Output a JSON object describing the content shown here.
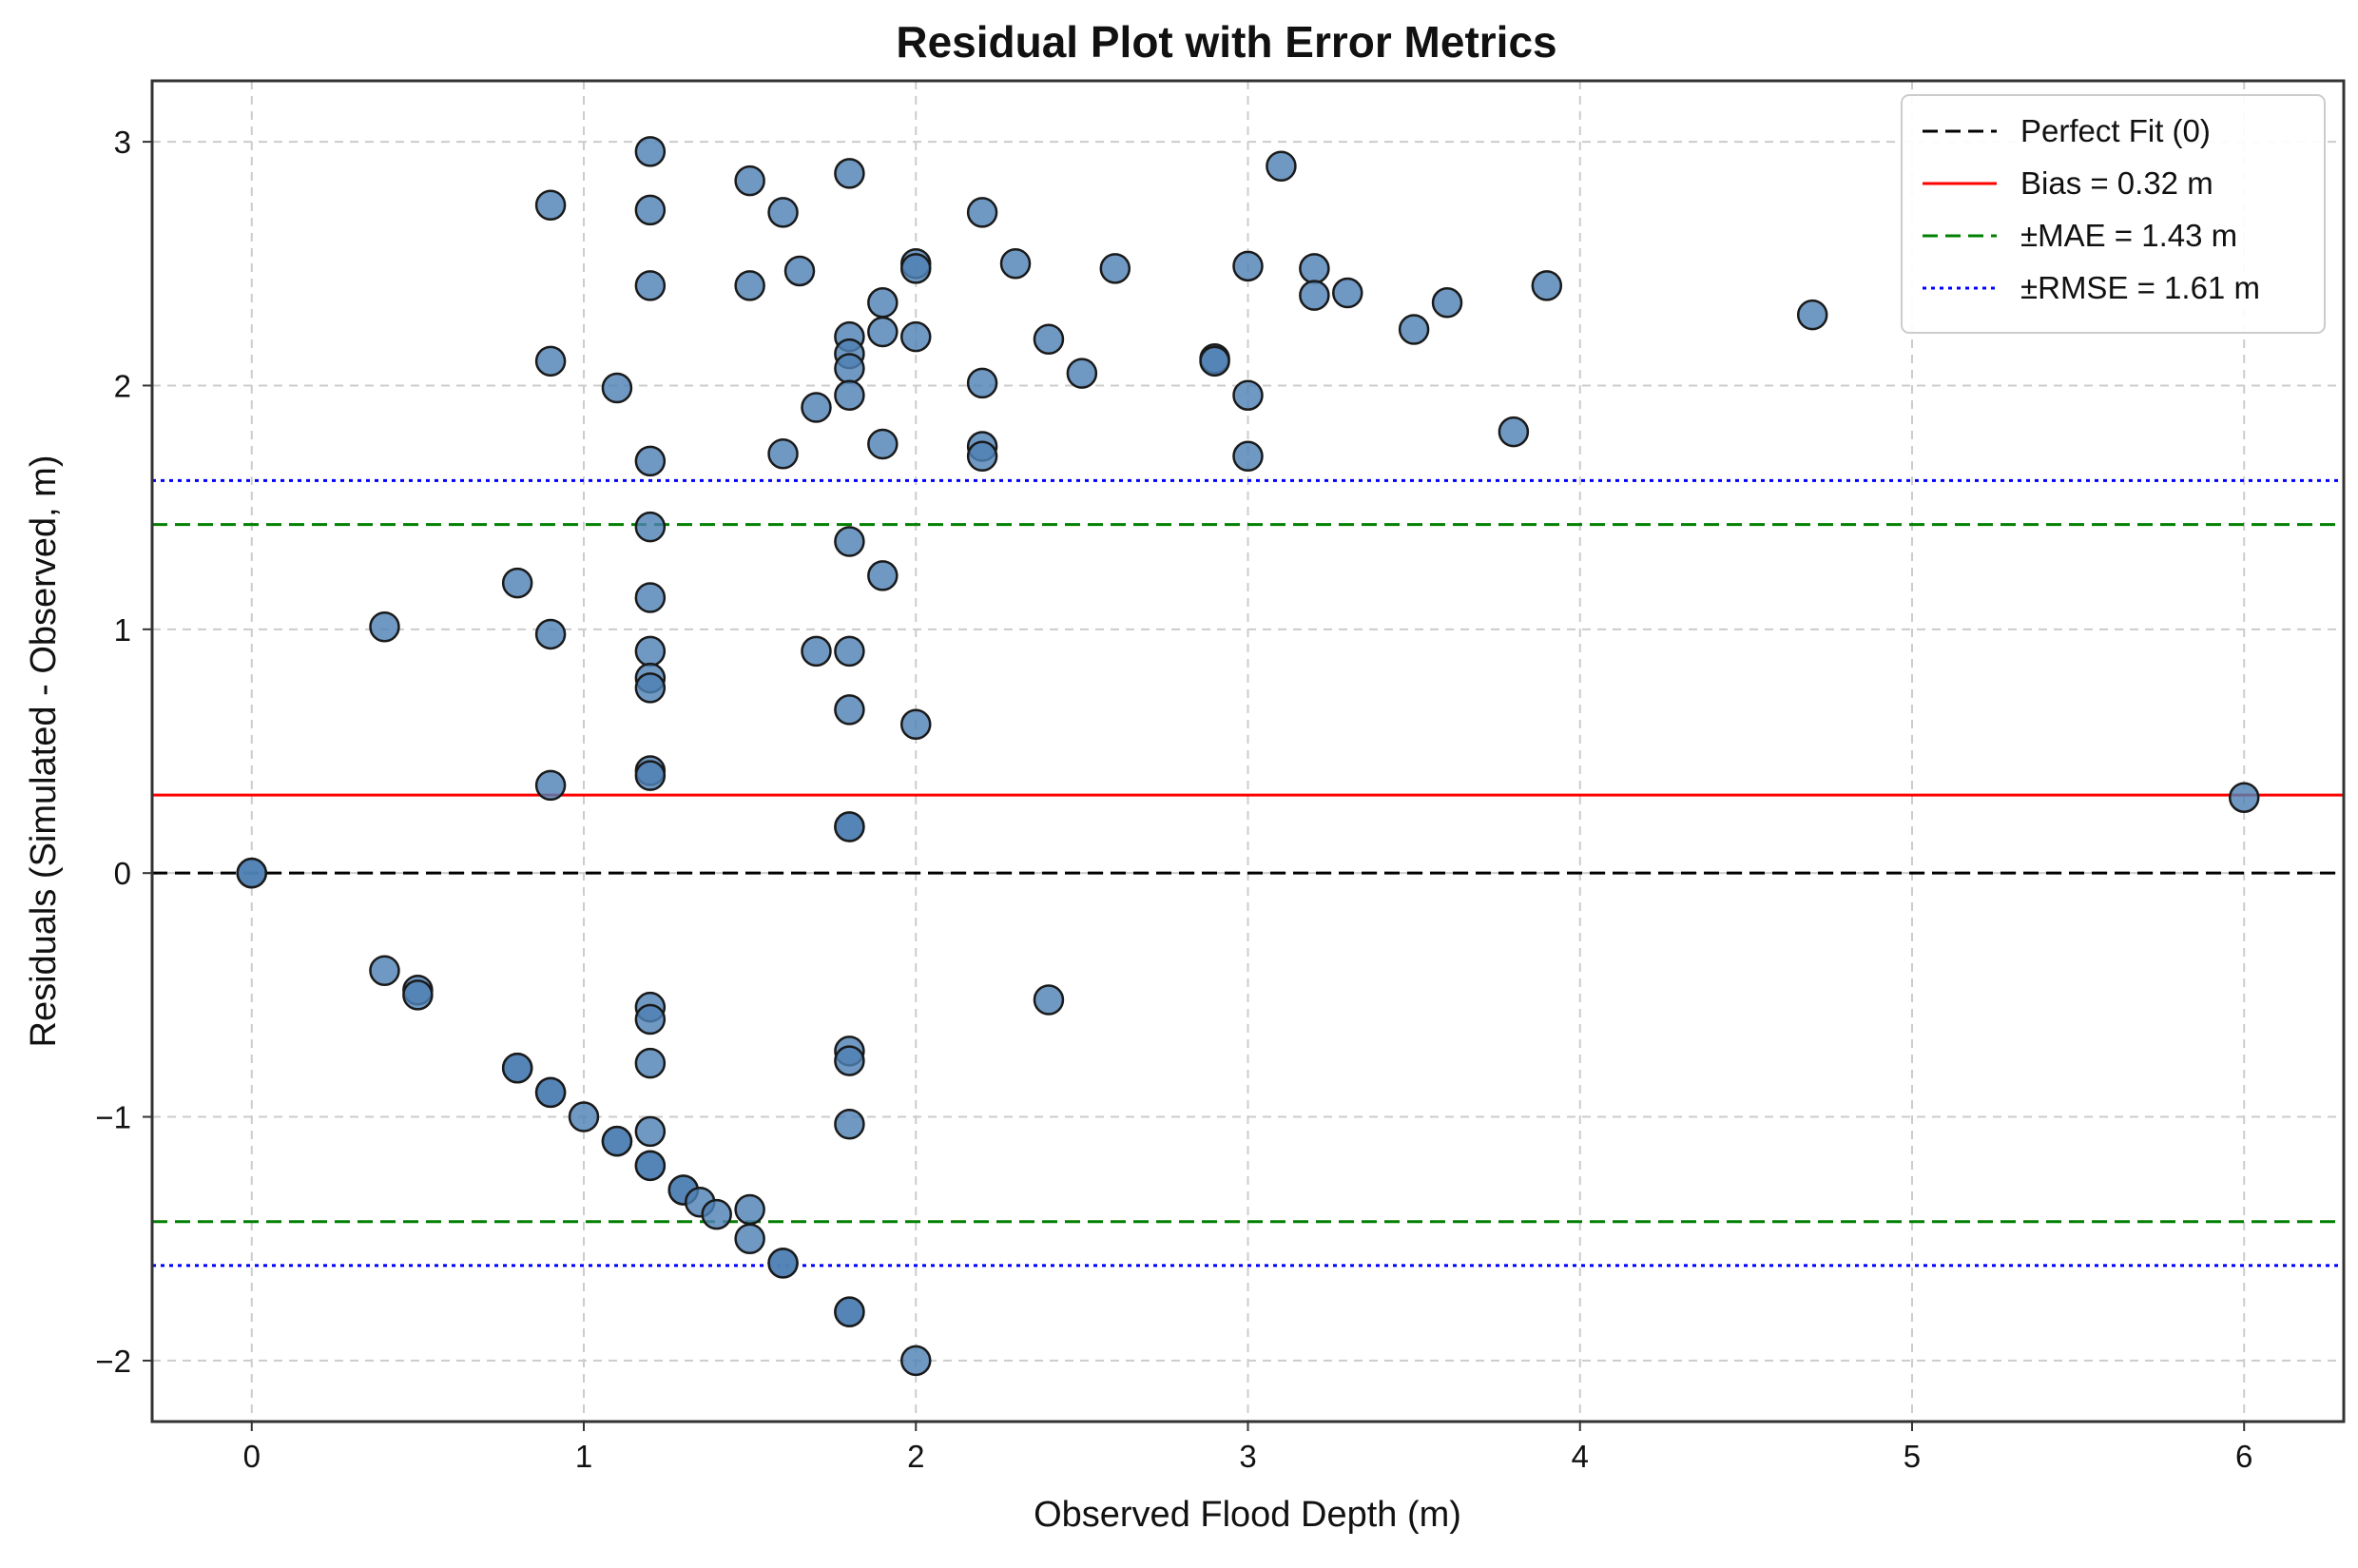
{
  "chart_data": {
    "type": "scatter",
    "title": "Residual Plot with Error Metrics",
    "xlabel": "Observed Flood Depth (m)",
    "ylabel": "Residuals (Simulated - Observed, m)",
    "xlim": [
      -0.3,
      6.3
    ],
    "ylim": [
      -2.25,
      3.25
    ],
    "xticks": [
      0,
      1,
      2,
      3,
      4,
      5,
      6
    ],
    "yticks": [
      -2,
      -1,
      0,
      1,
      2,
      3
    ],
    "xtick_labels": [
      "0",
      "1",
      "2",
      "3",
      "4",
      "5",
      "6"
    ],
    "ytick_labels": [
      "−2",
      "−1",
      "0",
      "1",
      "2",
      "3"
    ],
    "grid": true,
    "legend_position": "top-right",
    "marker_color": "#4f81b4",
    "reference_lines": [
      {
        "label": "Perfect Fit (0)",
        "y": [
          0
        ],
        "color": "#000000",
        "style": "dashed"
      },
      {
        "label": "Bias = 0.32 m",
        "y": [
          0.32
        ],
        "color": "#ff0000",
        "style": "solid"
      },
      {
        "label": "±MAE = 1.43 m",
        "y": [
          1.43,
          -1.43
        ],
        "color": "#008000",
        "style": "dashed"
      },
      {
        "label": "±RMSE = 1.61 m",
        "y": [
          1.61,
          -1.61
        ],
        "color": "#0000ff",
        "style": "dotted"
      }
    ],
    "points": [
      [
        0,
        0
      ],
      [
        0,
        0
      ],
      [
        0.4,
        1.01
      ],
      [
        0.4,
        -0.4
      ],
      [
        0.5,
        -0.48
      ],
      [
        0.5,
        -0.5
      ],
      [
        0.8,
        1.19
      ],
      [
        0.8,
        -0.8
      ],
      [
        0.8,
        -0.8
      ],
      [
        0.9,
        2.74
      ],
      [
        0.9,
        2.1
      ],
      [
        0.9,
        0.98
      ],
      [
        0.9,
        0.36
      ],
      [
        0.9,
        -0.9
      ],
      [
        0.9,
        -0.9
      ],
      [
        1.0,
        -1.0
      ],
      [
        1.1,
        1.99
      ],
      [
        1.1,
        -1.1
      ],
      [
        1.1,
        -1.1
      ],
      [
        1.2,
        2.96
      ],
      [
        1.2,
        2.72
      ],
      [
        1.2,
        2.41
      ],
      [
        1.2,
        1.69
      ],
      [
        1.2,
        1.42
      ],
      [
        1.2,
        1.13
      ],
      [
        1.2,
        0.91
      ],
      [
        1.2,
        0.8
      ],
      [
        1.2,
        0.76
      ],
      [
        1.2,
        0.42
      ],
      [
        1.2,
        0.4
      ],
      [
        1.2,
        -0.55
      ],
      [
        1.2,
        -0.6
      ],
      [
        1.2,
        -0.78
      ],
      [
        1.2,
        -1.06
      ],
      [
        1.2,
        -1.2
      ],
      [
        1.2,
        -1.2
      ],
      [
        1.3,
        -1.3
      ],
      [
        1.3,
        -1.3
      ],
      [
        1.35,
        -1.35
      ],
      [
        1.4,
        -1.4
      ],
      [
        1.5,
        2.84
      ],
      [
        1.5,
        2.41
      ],
      [
        1.5,
        -1.38
      ],
      [
        1.5,
        -1.5
      ],
      [
        1.6,
        2.71
      ],
      [
        1.6,
        1.72
      ],
      [
        1.6,
        -1.6
      ],
      [
        1.6,
        -1.6
      ],
      [
        1.65,
        2.47
      ],
      [
        1.7,
        1.91
      ],
      [
        1.7,
        0.91
      ],
      [
        1.8,
        2.87
      ],
      [
        1.8,
        2.2
      ],
      [
        1.8,
        2.13
      ],
      [
        1.8,
        2.07
      ],
      [
        1.8,
        1.96
      ],
      [
        1.8,
        1.36
      ],
      [
        1.8,
        0.91
      ],
      [
        1.8,
        0.67
      ],
      [
        1.8,
        0.19
      ],
      [
        1.8,
        0.19
      ],
      [
        1.8,
        -0.73
      ],
      [
        1.8,
        -0.77
      ],
      [
        1.8,
        -1.03
      ],
      [
        1.8,
        -1.8
      ],
      [
        1.8,
        -1.8
      ],
      [
        1.9,
        2.34
      ],
      [
        1.9,
        2.22
      ],
      [
        1.9,
        1.76
      ],
      [
        1.9,
        1.22
      ],
      [
        2.0,
        2.5
      ],
      [
        2.0,
        2.48
      ],
      [
        2.0,
        2.2
      ],
      [
        2.0,
        0.61
      ],
      [
        2.0,
        -2.0
      ],
      [
        2.2,
        2.71
      ],
      [
        2.2,
        2.01
      ],
      [
        2.2,
        1.75
      ],
      [
        2.2,
        1.71
      ],
      [
        2.3,
        2.5
      ],
      [
        2.4,
        2.19
      ],
      [
        2.4,
        -0.52
      ],
      [
        2.5,
        2.05
      ],
      [
        2.6,
        2.48
      ],
      [
        2.9,
        2.11
      ],
      [
        2.9,
        2.1
      ],
      [
        3.0,
        2.49
      ],
      [
        3.0,
        1.96
      ],
      [
        3.0,
        1.71
      ],
      [
        3.1,
        2.9
      ],
      [
        3.2,
        2.48
      ],
      [
        3.2,
        2.37
      ],
      [
        3.3,
        2.38
      ],
      [
        3.5,
        2.23
      ],
      [
        3.6,
        2.34
      ],
      [
        3.8,
        1.81
      ],
      [
        3.9,
        2.41
      ],
      [
        4.7,
        2.29
      ],
      [
        6.0,
        0.31
      ]
    ]
  }
}
